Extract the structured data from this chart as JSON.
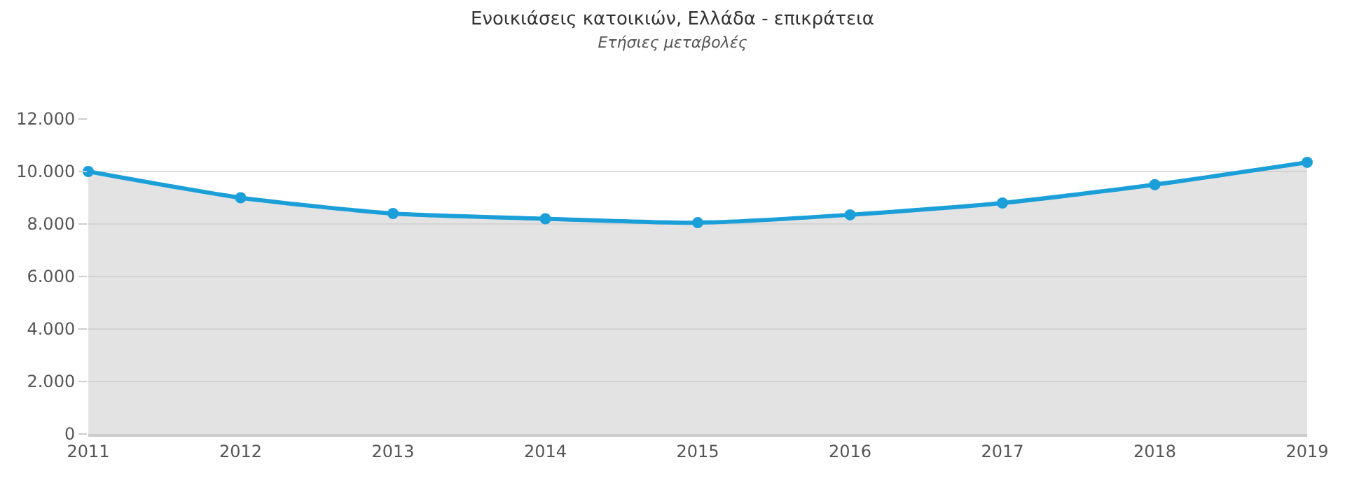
{
  "chart_data": {
    "type": "area",
    "title": "Ενοικιάσεις κατοικιών, Ελλάδα - επικράτεια",
    "subtitle": "Ετήσιες μεταβολές",
    "x": [
      2011,
      2012,
      2013,
      2014,
      2015,
      2016,
      2017,
      2018,
      2019
    ],
    "series": [
      {
        "color": "#1a9fd9",
        "values": [
          10000,
          9000,
          8400,
          8200,
          8050,
          8350,
          8800,
          9500,
          10350
        ]
      }
    ],
    "xlim": [
      2011,
      2019
    ],
    "xticks": [
      2011,
      2012,
      2013,
      2014,
      2015,
      2016,
      2017,
      2018,
      2019
    ],
    "ylim": [
      0,
      12000
    ],
    "yticks": [
      {
        "value": 0,
        "label": "0"
      },
      {
        "value": 2000,
        "label": "2.000"
      },
      {
        "value": 4000,
        "label": "4.000"
      },
      {
        "value": 6000,
        "label": "6.000"
      },
      {
        "value": 8000,
        "label": "8.000"
      },
      {
        "value": 10000,
        "label": "10.000"
      },
      {
        "value": 12000,
        "label": "12.000"
      }
    ],
    "grid": "y",
    "marker": "circle",
    "line_style": "solid"
  }
}
